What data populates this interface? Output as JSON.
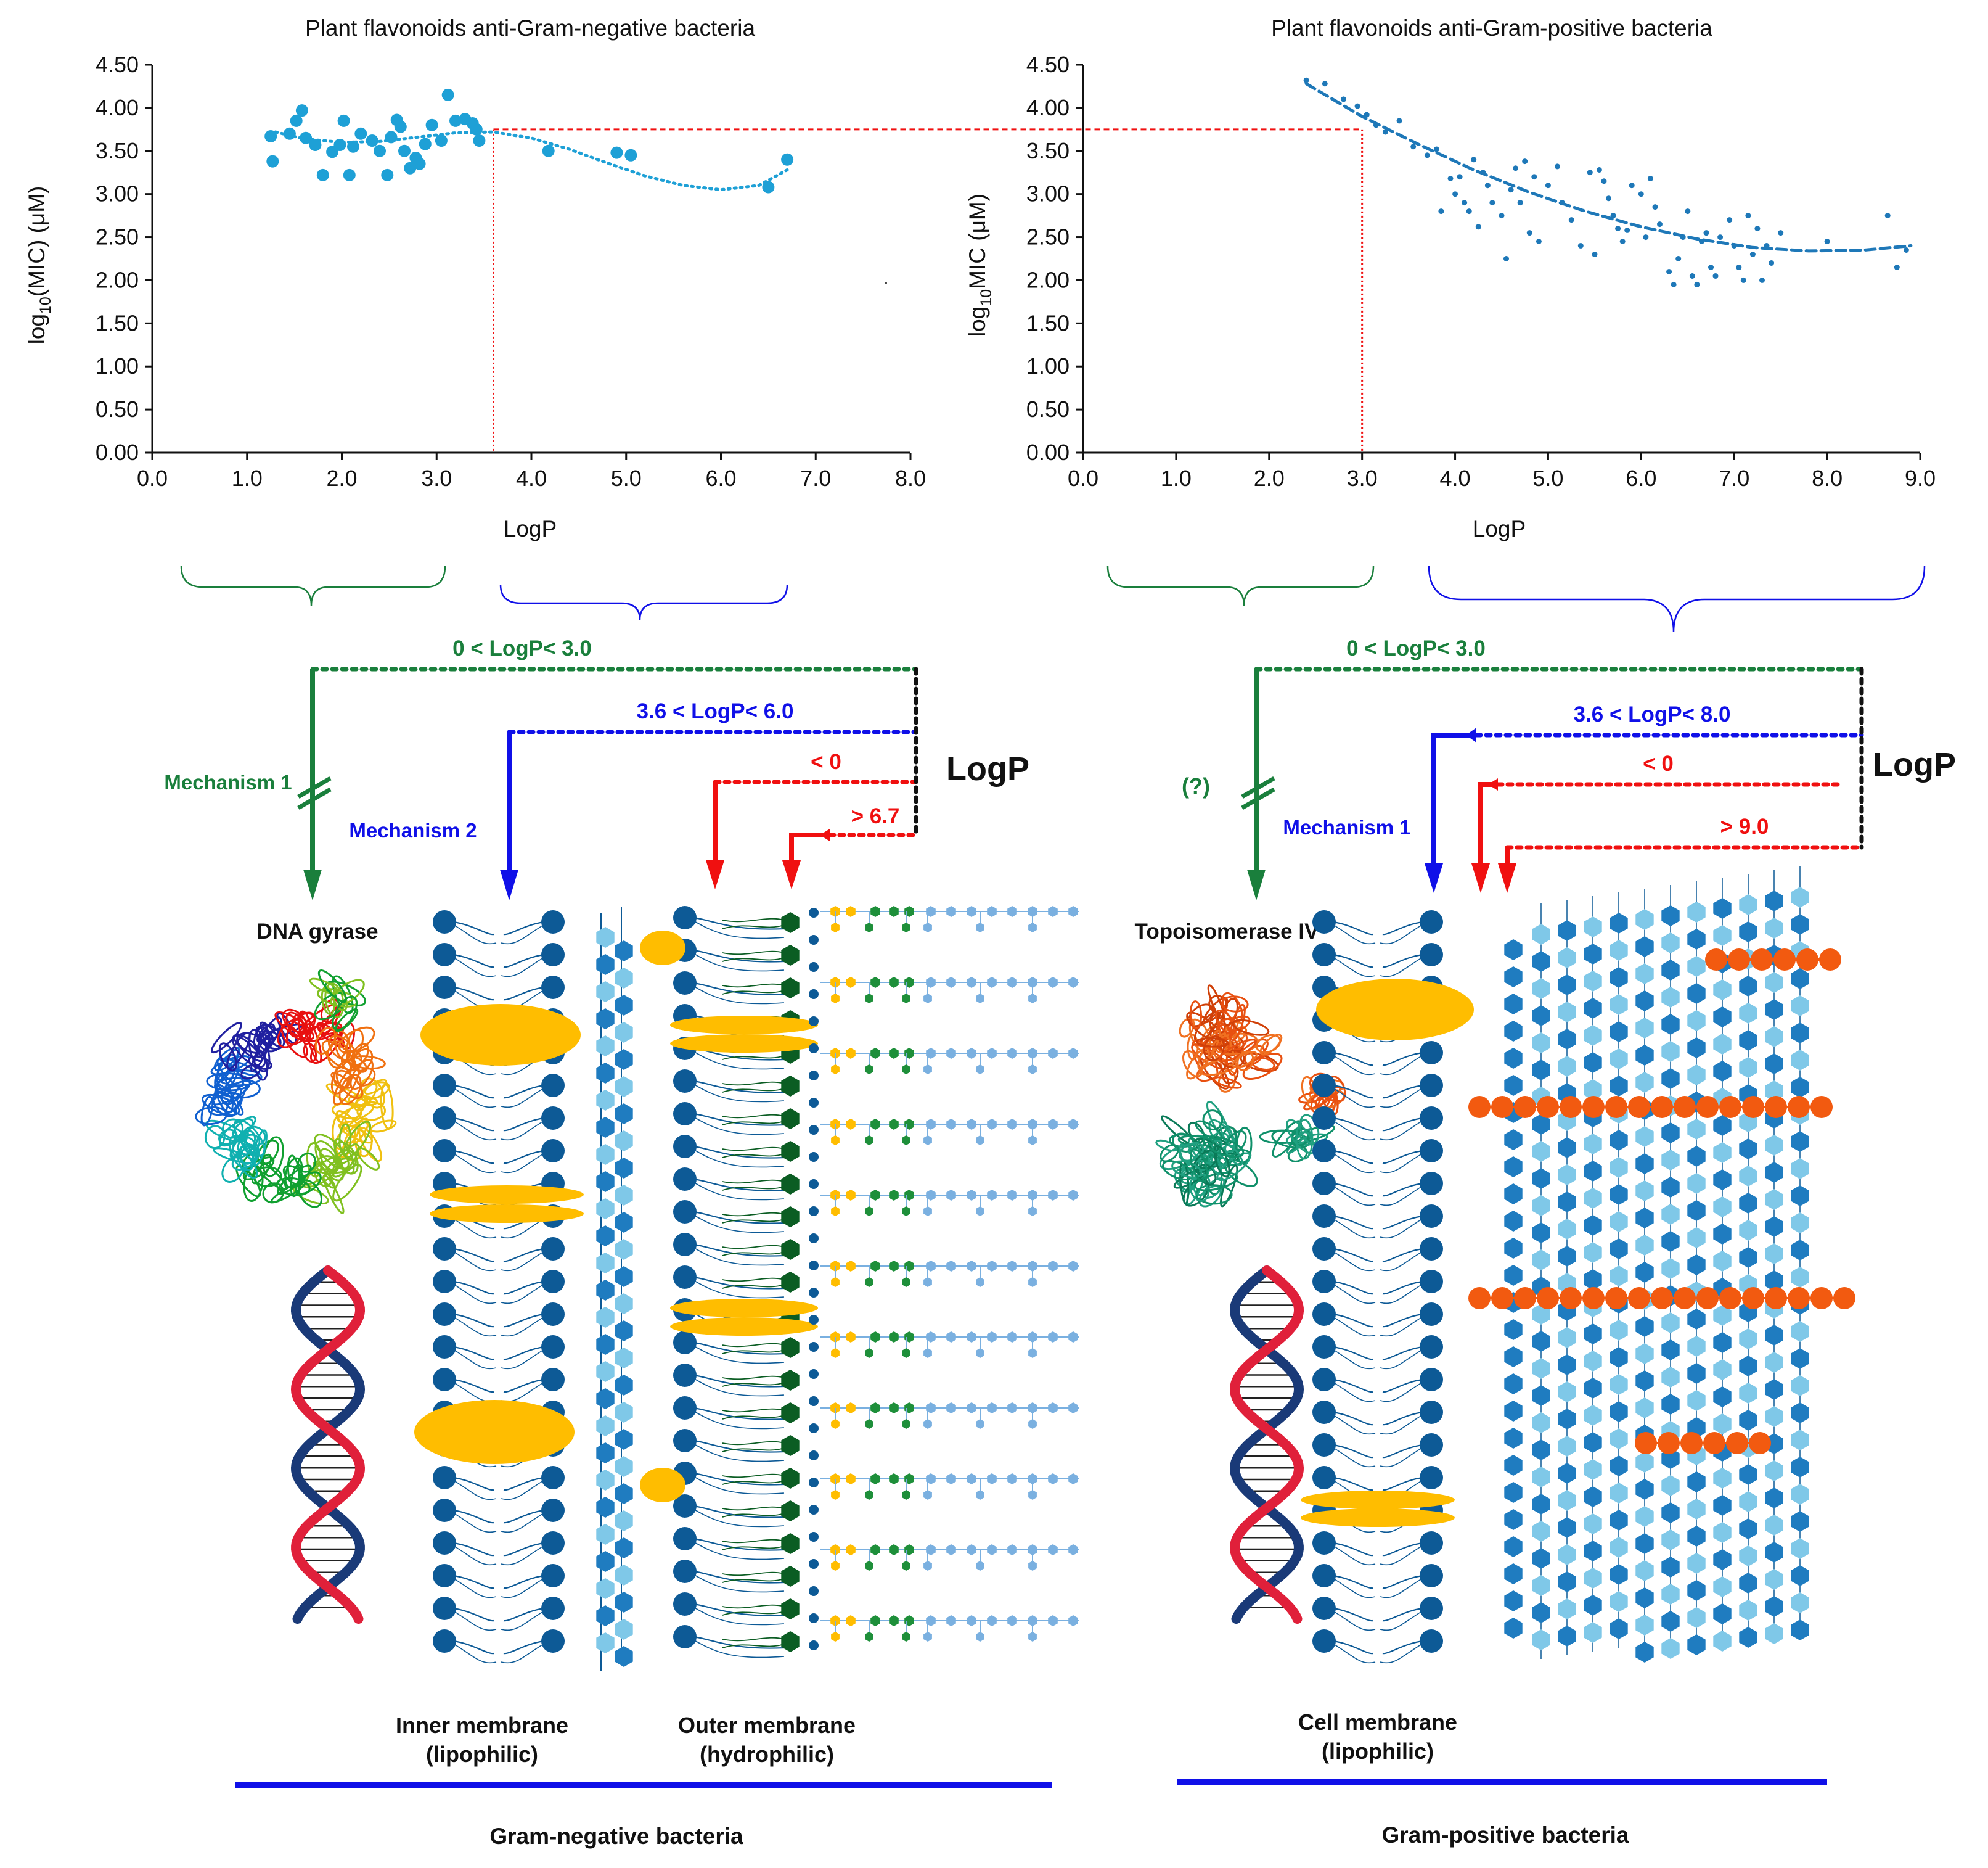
{
  "colors": {
    "green": "#1a7f3c",
    "blue": "#1010e8",
    "red": "#f01010",
    "black": "#111111",
    "gram_neg_points": "#1ea0d6",
    "gram_pos_points": "#1e78b8",
    "lipid_head": "#0d5a96",
    "hex_light": "#7fc8e8",
    "hex_mid": "#1f7cc0",
    "porin": "#ffbd00",
    "lps_core": "#0b5d23",
    "lps_green": "#1e8f3a",
    "lps_blue": "#7ab0e0",
    "orange_chain": "#f25a10",
    "dna_red": "#e0203a",
    "dna_navy": "#1a3a78"
  },
  "chart_data": [
    {
      "type": "scatter",
      "title": "Plant flavonoids anti-Gram-negative bacteria",
      "xlabel": "LogP",
      "ylabel_parts": [
        "log",
        "10",
        "(MIC) (μM)"
      ],
      "xlim": [
        0,
        8
      ],
      "ylim": [
        0,
        4.5
      ],
      "xticks": [
        "0.0",
        "1.0",
        "2.0",
        "3.0",
        "4.0",
        "5.0",
        "6.0",
        "7.0",
        "8.0"
      ],
      "yticks": [
        "0.00",
        "0.50",
        "1.00",
        "1.50",
        "2.00",
        "2.50",
        "3.00",
        "3.50",
        "4.00",
        "4.50"
      ],
      "points": [
        [
          1.25,
          3.67
        ],
        [
          1.27,
          3.38
        ],
        [
          1.45,
          3.7
        ],
        [
          1.52,
          3.85
        ],
        [
          1.58,
          3.97
        ],
        [
          1.62,
          3.65
        ],
        [
          1.72,
          3.57
        ],
        [
          1.8,
          3.22
        ],
        [
          1.9,
          3.49
        ],
        [
          1.98,
          3.57
        ],
        [
          2.02,
          3.85
        ],
        [
          2.08,
          3.22
        ],
        [
          2.12,
          3.55
        ],
        [
          2.2,
          3.7
        ],
        [
          2.32,
          3.62
        ],
        [
          2.4,
          3.5
        ],
        [
          2.48,
          3.22
        ],
        [
          2.52,
          3.66
        ],
        [
          2.58,
          3.86
        ],
        [
          2.62,
          3.78
        ],
        [
          2.66,
          3.5
        ],
        [
          2.72,
          3.3
        ],
        [
          2.78,
          3.42
        ],
        [
          2.82,
          3.35
        ],
        [
          2.88,
          3.58
        ],
        [
          2.95,
          3.8
        ],
        [
          3.05,
          3.62
        ],
        [
          3.12,
          4.15
        ],
        [
          3.2,
          3.85
        ],
        [
          3.3,
          3.87
        ],
        [
          3.38,
          3.82
        ],
        [
          3.42,
          3.75
        ],
        [
          3.45,
          3.62
        ],
        [
          4.18,
          3.5
        ],
        [
          4.9,
          3.48
        ],
        [
          5.05,
          3.45
        ],
        [
          6.5,
          3.08
        ],
        [
          6.7,
          3.4
        ]
      ],
      "trend": [
        [
          1.3,
          3.72
        ],
        [
          1.6,
          3.64
        ],
        [
          2.0,
          3.6
        ],
        [
          2.4,
          3.61
        ],
        [
          2.8,
          3.66
        ],
        [
          3.2,
          3.71
        ],
        [
          3.6,
          3.72
        ],
        [
          4.0,
          3.65
        ],
        [
          4.4,
          3.52
        ],
        [
          4.8,
          3.36
        ],
        [
          5.2,
          3.21
        ],
        [
          5.6,
          3.1
        ],
        [
          6.0,
          3.05
        ],
        [
          6.4,
          3.1
        ],
        [
          6.7,
          3.28
        ]
      ],
      "ref_point": [
        3.6,
        3.75
      ]
    },
    {
      "type": "scatter",
      "title": "Plant flavonoids anti-Gram-positive bacteria",
      "xlabel": "LogP",
      "ylabel_parts": [
        "log",
        "10",
        "MIC (μM)"
      ],
      "xlim": [
        0,
        9
      ],
      "ylim": [
        0,
        4.5
      ],
      "xticks": [
        "0.0",
        "1.0",
        "2.0",
        "3.0",
        "4.0",
        "5.0",
        "6.0",
        "7.0",
        "8.0",
        "9.0"
      ],
      "yticks": [
        "0.00",
        "0.50",
        "1.00",
        "1.50",
        "2.00",
        "2.50",
        "3.00",
        "3.50",
        "4.00",
        "4.50"
      ],
      "points": [
        [
          2.4,
          4.32
        ],
        [
          2.6,
          4.28
        ],
        [
          2.8,
          4.1
        ],
        [
          2.95,
          4.02
        ],
        [
          3.05,
          3.92
        ],
        [
          3.15,
          3.8
        ],
        [
          3.25,
          3.72
        ],
        [
          3.4,
          3.85
        ],
        [
          3.55,
          3.55
        ],
        [
          3.7,
          3.45
        ],
        [
          3.8,
          3.52
        ],
        [
          3.85,
          2.8
        ],
        [
          3.95,
          3.18
        ],
        [
          4.0,
          3.0
        ],
        [
          4.05,
          3.2
        ],
        [
          4.1,
          2.9
        ],
        [
          4.15,
          2.8
        ],
        [
          4.2,
          3.4
        ],
        [
          4.25,
          2.62
        ],
        [
          4.3,
          3.25
        ],
        [
          4.35,
          3.1
        ],
        [
          4.4,
          2.9
        ],
        [
          4.5,
          2.75
        ],
        [
          4.55,
          2.25
        ],
        [
          4.6,
          3.05
        ],
        [
          4.65,
          3.3
        ],
        [
          4.7,
          2.9
        ],
        [
          4.75,
          3.38
        ],
        [
          4.8,
          2.55
        ],
        [
          4.85,
          3.2
        ],
        [
          4.9,
          2.45
        ],
        [
          5.0,
          3.1
        ],
        [
          5.1,
          3.32
        ],
        [
          5.15,
          2.9
        ],
        [
          5.25,
          2.7
        ],
        [
          5.35,
          2.4
        ],
        [
          5.45,
          3.25
        ],
        [
          5.5,
          2.3
        ],
        [
          5.55,
          3.28
        ],
        [
          5.6,
          3.15
        ],
        [
          5.65,
          2.95
        ],
        [
          5.7,
          2.75
        ],
        [
          5.75,
          2.6
        ],
        [
          5.8,
          2.45
        ],
        [
          5.85,
          2.58
        ],
        [
          5.9,
          3.1
        ],
        [
          6.0,
          3.0
        ],
        [
          6.05,
          2.5
        ],
        [
          6.1,
          3.18
        ],
        [
          6.15,
          2.85
        ],
        [
          6.2,
          2.65
        ],
        [
          6.3,
          2.1
        ],
        [
          6.35,
          1.95
        ],
        [
          6.4,
          2.25
        ],
        [
          6.45,
          2.5
        ],
        [
          6.5,
          2.8
        ],
        [
          6.55,
          2.05
        ],
        [
          6.6,
          1.95
        ],
        [
          6.65,
          2.45
        ],
        [
          6.7,
          2.55
        ],
        [
          6.75,
          2.15
        ],
        [
          6.8,
          2.05
        ],
        [
          6.85,
          2.5
        ],
        [
          6.95,
          2.7
        ],
        [
          7.0,
          2.4
        ],
        [
          7.05,
          2.15
        ],
        [
          7.1,
          2.0
        ],
        [
          7.15,
          2.75
        ],
        [
          7.2,
          2.3
        ],
        [
          7.25,
          2.6
        ],
        [
          7.3,
          2.0
        ],
        [
          7.35,
          2.4
        ],
        [
          7.4,
          2.2
        ],
        [
          7.5,
          2.55
        ],
        [
          8.0,
          2.45
        ],
        [
          8.65,
          2.75
        ],
        [
          8.75,
          2.15
        ],
        [
          8.85,
          2.35
        ]
      ],
      "trend": [
        [
          2.4,
          4.28
        ],
        [
          3.0,
          3.9
        ],
        [
          3.6,
          3.58
        ],
        [
          4.2,
          3.28
        ],
        [
          4.8,
          3.02
        ],
        [
          5.4,
          2.8
        ],
        [
          6.0,
          2.62
        ],
        [
          6.6,
          2.48
        ],
        [
          7.2,
          2.38
        ],
        [
          7.8,
          2.34
        ],
        [
          8.4,
          2.35
        ],
        [
          8.9,
          2.4
        ]
      ],
      "ref_point": [
        3.0,
        3.75
      ]
    }
  ],
  "diagram": {
    "neg": {
      "range1": "0 < LogP< 3.0",
      "range2": "3.6 < LogP< 6.0",
      "range3": "< 0",
      "range4": "> 6.7",
      "logp": "LogP",
      "mech1": "Mechanism 1",
      "mech2": "Mechanism 2",
      "target": "DNA gyrase",
      "inner_label_1": "Inner membrane",
      "inner_label_2": "(lipophilic)",
      "outer_label_1": "Outer membrane",
      "outer_label_2": "(hydrophilic)",
      "bottom_label": "Gram-negative bacteria"
    },
    "pos": {
      "range1": "0 < LogP< 3.0",
      "range2": "3.6 < LogP< 8.0",
      "range3": "< 0",
      "range4": "> 9.0",
      "logp": "LogP",
      "question": "(?)",
      "mech1": "Mechanism 1",
      "target": "Topoisomerase IV",
      "cell_label_1": "Cell membrane",
      "cell_label_2": "(lipophilic)",
      "bottom_label": "Gram-positive bacteria"
    }
  }
}
